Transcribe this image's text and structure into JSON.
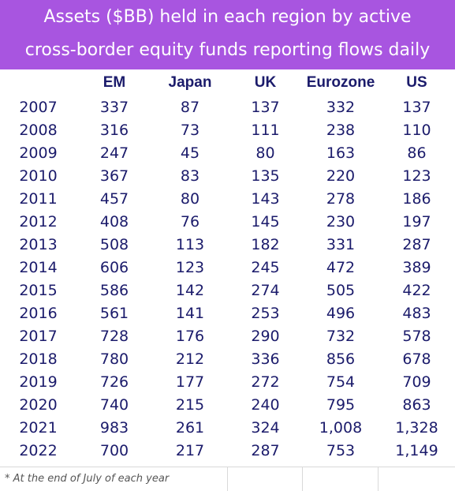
{
  "title": {
    "line1": "Assets ($BB) held in each region by active",
    "line2": "cross-border equity funds reporting flows daily"
  },
  "colors": {
    "title_background": "#a855e0",
    "title_text": "#ffffff",
    "table_text": "#1b1b6b"
  },
  "footnote": "* At the end of July of each year",
  "chart_data": {
    "type": "table",
    "title": "Assets ($BB) held in each region by active cross-border equity funds reporting flows daily",
    "columns": [
      "",
      "EM",
      "Japan",
      "UK",
      "Eurozone",
      "US"
    ],
    "rows": [
      [
        "2007",
        "337",
        "87",
        "137",
        "332",
        "137"
      ],
      [
        "2008",
        "316",
        "73",
        "111",
        "238",
        "110"
      ],
      [
        "2009",
        "247",
        "45",
        "80",
        "163",
        "86"
      ],
      [
        "2010",
        "367",
        "83",
        "135",
        "220",
        "123"
      ],
      [
        "2011",
        "457",
        "80",
        "143",
        "278",
        "186"
      ],
      [
        "2012",
        "408",
        "76",
        "145",
        "230",
        "197"
      ],
      [
        "2013",
        "508",
        "113",
        "182",
        "331",
        "287"
      ],
      [
        "2014",
        "606",
        "123",
        "245",
        "472",
        "389"
      ],
      [
        "2015",
        "586",
        "142",
        "274",
        "505",
        "422"
      ],
      [
        "2016",
        "561",
        "141",
        "253",
        "496",
        "483"
      ],
      [
        "2017",
        "728",
        "176",
        "290",
        "732",
        "578"
      ],
      [
        "2018",
        "780",
        "212",
        "336",
        "856",
        "678"
      ],
      [
        "2019",
        "726",
        "177",
        "272",
        "754",
        "709"
      ],
      [
        "2020",
        "740",
        "215",
        "240",
        "795",
        "863"
      ],
      [
        "2021",
        "983",
        "261",
        "324",
        "1,008",
        "1,328"
      ],
      [
        "2022",
        "700",
        "217",
        "287",
        "753",
        "1,149"
      ]
    ]
  }
}
